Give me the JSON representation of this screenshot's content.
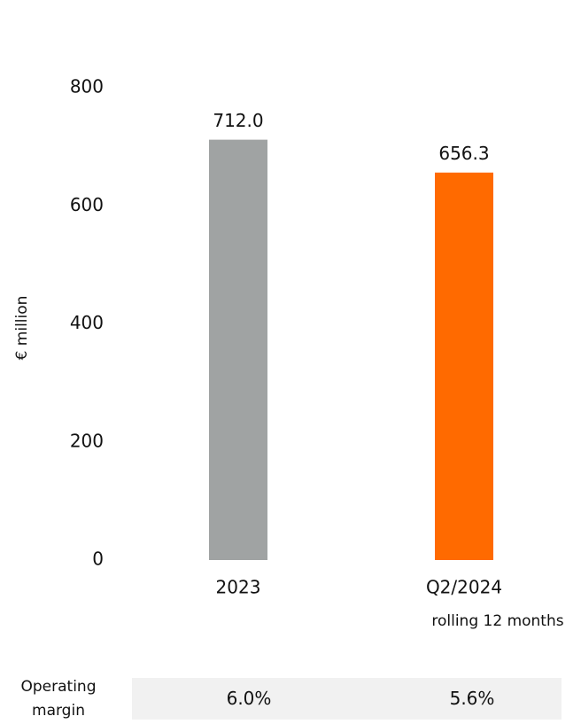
{
  "chart_data": {
    "type": "bar",
    "ylabel": "€ million",
    "categories": [
      "2023",
      "Q2/2024"
    ],
    "values": [
      712.0,
      656.3
    ],
    "value_labels": [
      "712.0",
      "656.3"
    ],
    "colors": [
      "#a0a3a3",
      "#ff6a00"
    ],
    "annotation": "rolling 12 months",
    "ylim": [
      0,
      800
    ],
    "yticks": [
      0,
      200,
      400,
      600,
      800
    ],
    "grid": false,
    "margin": {
      "label": "Operating margin",
      "values": [
        6.0,
        5.6
      ],
      "value_labels": [
        "6.0%",
        "5.6%"
      ]
    }
  }
}
